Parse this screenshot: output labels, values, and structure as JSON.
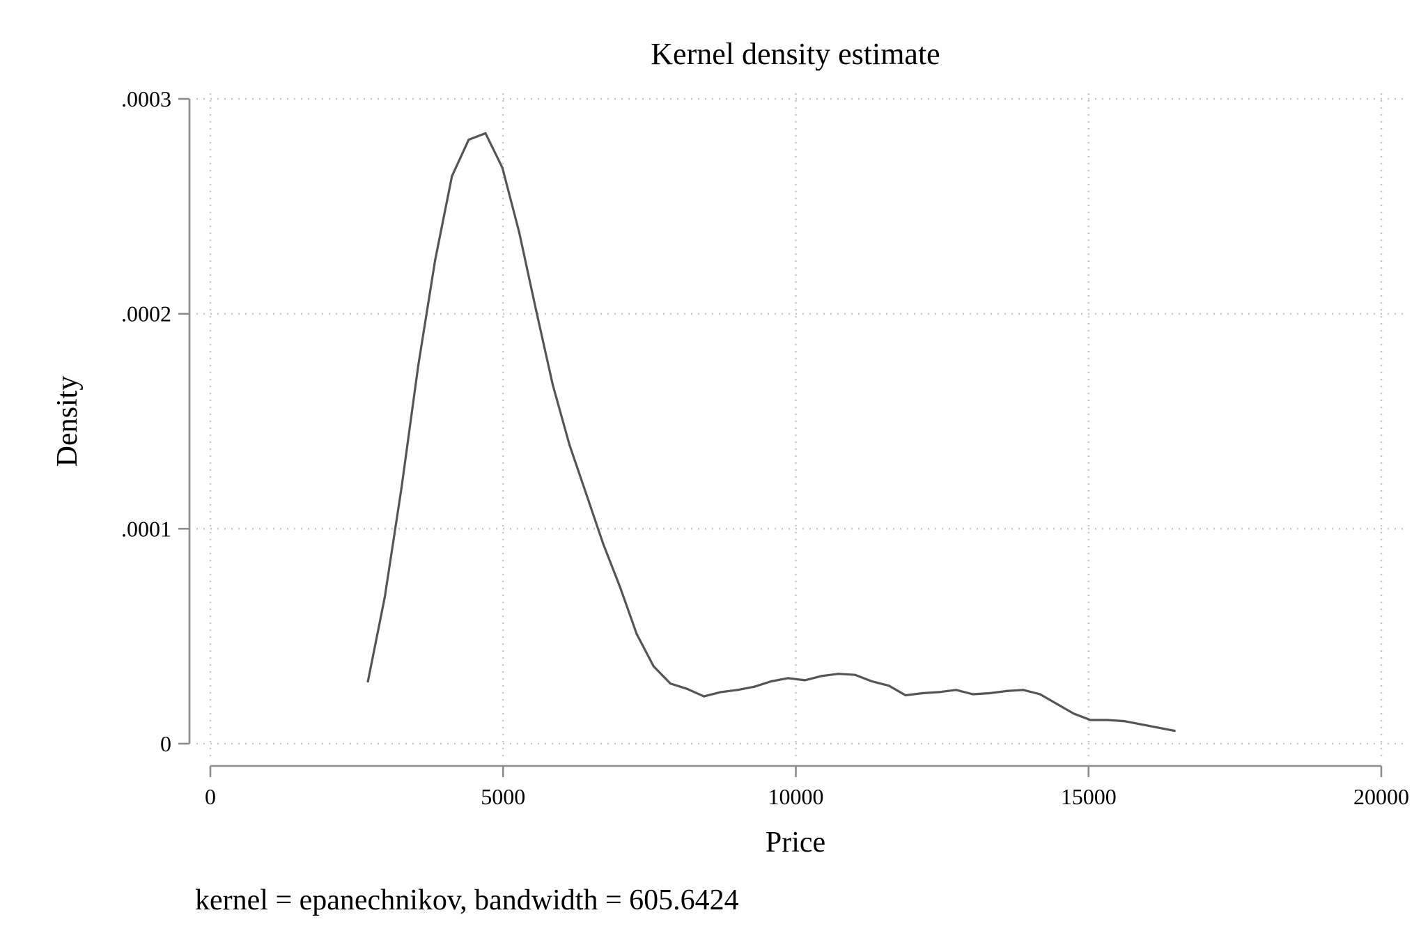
{
  "chart_data": {
    "type": "line",
    "title": "Kernel density estimate",
    "xlabel": "Price",
    "ylabel": "Density",
    "note": "kernel = epanechnikov, bandwidth = 605.6424",
    "xlim": [
      0,
      20000
    ],
    "ylim": [
      0,
      0.0003
    ],
    "x_ticks": [
      {
        "value": 0,
        "label": "0"
      },
      {
        "value": 5000,
        "label": "5000"
      },
      {
        "value": 10000,
        "label": "10000"
      },
      {
        "value": 15000,
        "label": "15000"
      },
      {
        "value": 20000,
        "label": "20000"
      }
    ],
    "y_ticks": [
      {
        "value": 0,
        "label": "0"
      },
      {
        "value": 0.0001,
        "label": ".0001"
      },
      {
        "value": 0.0002,
        "label": ".0002"
      },
      {
        "value": 0.0003,
        "label": ".0003"
      }
    ],
    "grid": true,
    "series": [
      {
        "color": "#555555",
        "x": [
          2691,
          2978,
          3265,
          3552,
          3839,
          4126,
          4413,
          4700,
          4987,
          5274,
          5561,
          5848,
          6135,
          6422,
          6709,
          6996,
          7283,
          7570,
          7857,
          8144,
          8431,
          8718,
          9005,
          9292,
          9579,
          9866,
          10153,
          10440,
          10727,
          11014,
          11301,
          11588,
          11875,
          12162,
          12449,
          12736,
          13023,
          13310,
          13597,
          13884,
          14171,
          14458,
          14745,
          15032,
          15319,
          15606,
          15893,
          16180,
          16467
        ],
        "y": [
          2.9e-05,
          6.8e-05,
          0.000119,
          0.000176,
          0.000225,
          0.000264,
          0.000281,
          0.000284,
          0.000268,
          0.000238,
          0.000202,
          0.000167,
          0.000139,
          0.000116,
          9.3e-05,
          7.3e-05,
          5.1e-05,
          3.6e-05,
          2.8e-05,
          2.55e-05,
          2.2e-05,
          2.4e-05,
          2.5e-05,
          2.65e-05,
          2.9e-05,
          3.05e-05,
          2.95e-05,
          3.15e-05,
          3.25e-05,
          3.2e-05,
          2.9e-05,
          2.7e-05,
          2.25e-05,
          2.35e-05,
          2.4e-05,
          2.5e-05,
          2.3e-05,
          2.35e-05,
          2.45e-05,
          2.5e-05,
          2.3e-05,
          1.85e-05,
          1.4e-05,
          1.1e-05,
          1.1e-05,
          1.05e-05,
          9e-06,
          7.5e-06,
          6e-06
        ]
      }
    ]
  }
}
